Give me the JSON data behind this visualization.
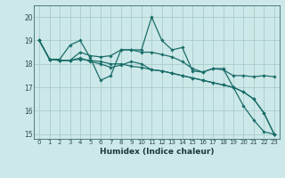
{
  "xlabel": "Humidex (Indice chaleur)",
  "ylabel": "",
  "xlim": [
    -0.5,
    23.5
  ],
  "ylim": [
    14.8,
    20.5
  ],
  "yticks": [
    15,
    16,
    17,
    18,
    19,
    20
  ],
  "xticks": [
    0,
    1,
    2,
    3,
    4,
    5,
    6,
    7,
    8,
    9,
    10,
    11,
    12,
    13,
    14,
    15,
    16,
    17,
    18,
    19,
    20,
    21,
    22,
    23
  ],
  "bg_color": "#cde8e8",
  "grid_color": "#aacccc",
  "line_color": "#1a6e6a",
  "series": [
    [
      19.0,
      18.2,
      18.2,
      18.8,
      19.0,
      18.25,
      17.3,
      17.5,
      18.6,
      18.6,
      18.6,
      20.0,
      19.0,
      18.6,
      18.7,
      17.7,
      17.65,
      17.8,
      17.8,
      17.0,
      16.2,
      15.6,
      15.1,
      15.0
    ],
    [
      19.0,
      18.2,
      18.15,
      18.15,
      18.5,
      18.35,
      18.3,
      18.35,
      18.6,
      18.6,
      18.5,
      18.5,
      18.4,
      18.3,
      18.1,
      17.8,
      17.65,
      17.8,
      17.75,
      17.5,
      17.5,
      17.45,
      17.5,
      17.45
    ],
    [
      19.0,
      18.2,
      18.15,
      18.15,
      18.2,
      18.15,
      18.1,
      18.0,
      18.0,
      17.9,
      17.85,
      17.75,
      17.7,
      17.6,
      17.5,
      17.4,
      17.3,
      17.2,
      17.1,
      17.0,
      16.8,
      16.5,
      15.9,
      15.0
    ],
    [
      19.0,
      18.2,
      18.15,
      18.15,
      18.25,
      18.1,
      18.0,
      17.85,
      17.95,
      18.1,
      18.0,
      17.75,
      17.7,
      17.6,
      17.5,
      17.4,
      17.3,
      17.2,
      17.1,
      17.0,
      16.8,
      16.5,
      15.9,
      15.0
    ]
  ]
}
